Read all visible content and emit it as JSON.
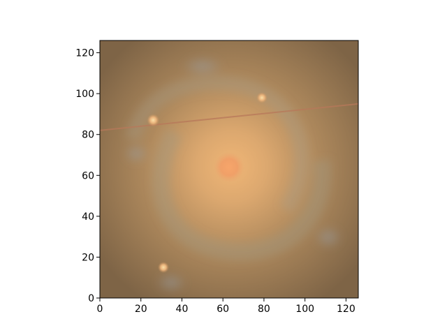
{
  "figure": {
    "subject": "galaxy-image",
    "x_axis": {
      "ticks": [
        0,
        20,
        40,
        60,
        80,
        100,
        120
      ],
      "range": [
        0,
        126
      ]
    },
    "y_axis": {
      "ticks": [
        0,
        20,
        40,
        60,
        80,
        100,
        120
      ],
      "range": [
        0,
        126
      ],
      "origin": "lower"
    },
    "colors": {
      "background": "#8a6e4c",
      "core": "#f3a166",
      "halo": "#d9a96c",
      "streak": "#b8785a",
      "star": "#f2c58a"
    },
    "features": {
      "core_center": [
        63,
        64
      ],
      "streak_from": [
        0,
        82
      ],
      "streak_to": [
        126,
        95
      ],
      "stars": [
        {
          "x": 26,
          "y": 87,
          "label": ""
        },
        {
          "x": 31,
          "y": 15,
          "label": ""
        },
        {
          "x": 79,
          "y": 98,
          "label": ""
        }
      ]
    }
  }
}
